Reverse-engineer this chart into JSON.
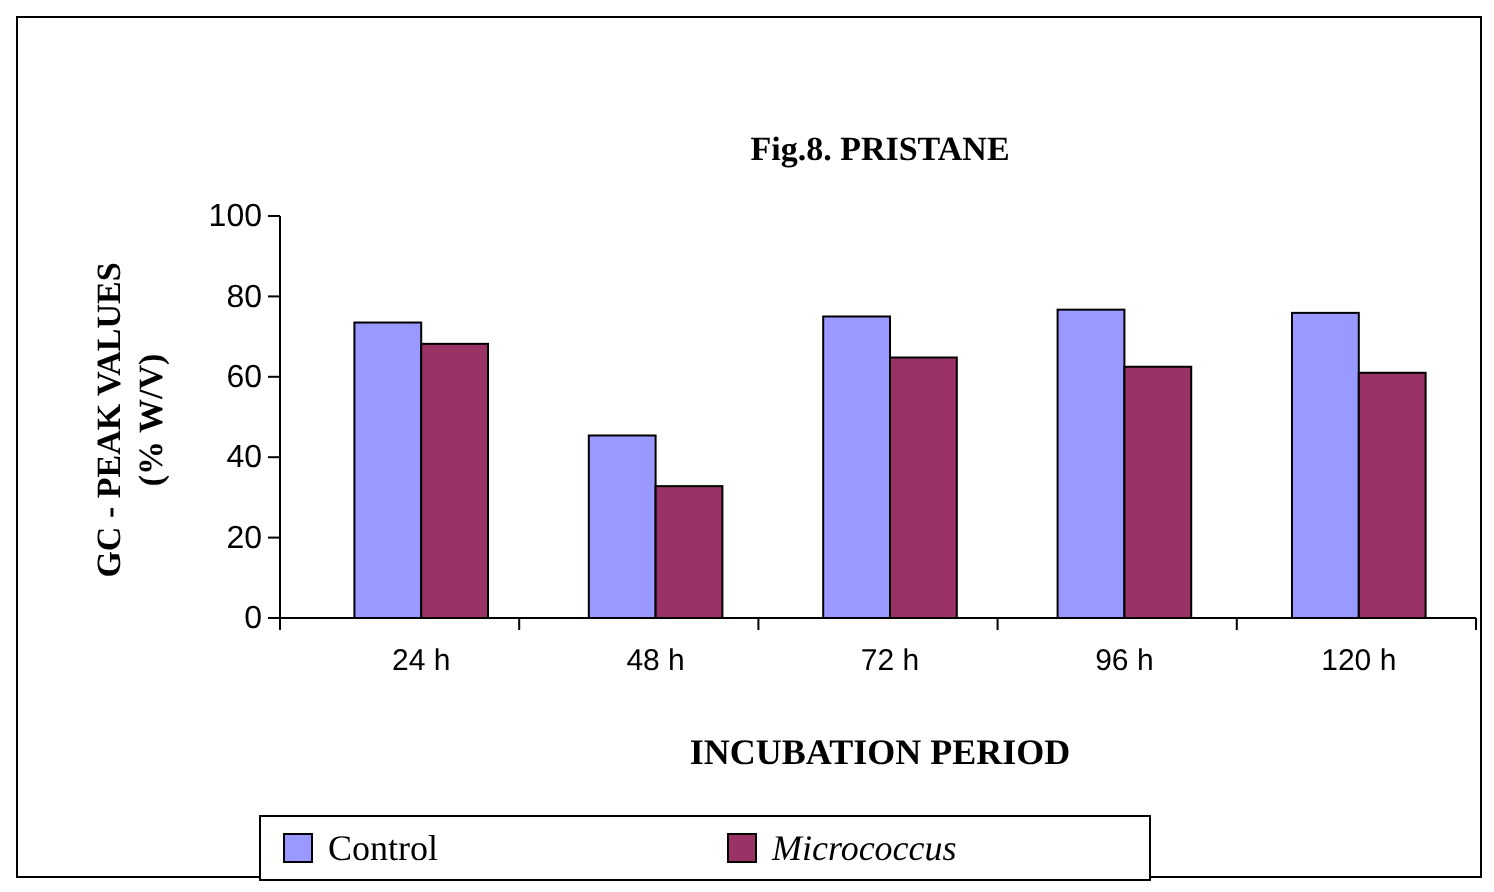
{
  "chart_data": {
    "type": "bar",
    "title": "Fig.8. PRISTANE",
    "xlabel": "INCUBATION PERIOD",
    "ylabel": "GC - PEAK VALUES\n(% W/V)",
    "categories": [
      "24 h",
      "48 h",
      "72 h",
      "96 h",
      "120 h"
    ],
    "series": [
      {
        "name": "Control",
        "color": "#9999ff",
        "values": [
          73.5,
          45.4,
          75.0,
          76.7,
          75.9
        ]
      },
      {
        "name": "Micrococcus",
        "color": "#993366",
        "values": [
          68.2,
          32.8,
          64.8,
          62.5,
          61.0
        ]
      }
    ],
    "ylim": [
      0,
      100
    ],
    "yticks": [
      0,
      20,
      40,
      60,
      80,
      100
    ],
    "grid": false,
    "legend": "bottom"
  }
}
